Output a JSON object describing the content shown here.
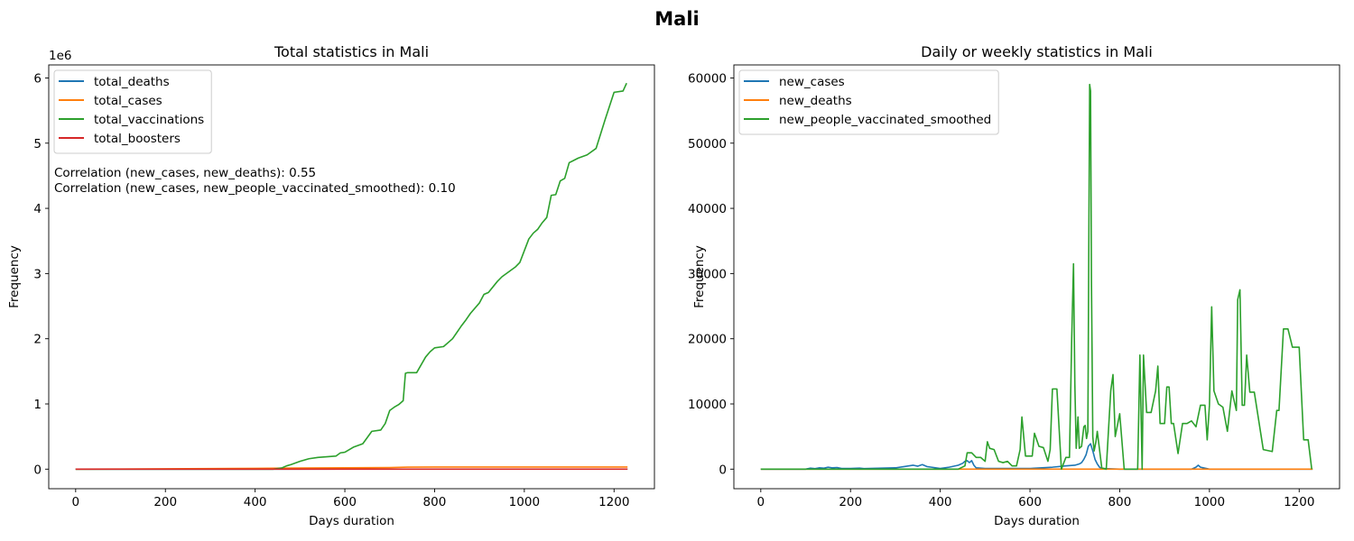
{
  "figure": {
    "suptitle": "Mali"
  },
  "chart_data": [
    {
      "type": "line",
      "title": "Total statistics in Mali",
      "xlabel": "Days duration",
      "ylabel": "Frequency",
      "y_offset_label": "1e6",
      "xlim": [
        -60,
        1290
      ],
      "ylim": [
        -300000,
        6200000
      ],
      "xticks": [
        0,
        200,
        400,
        600,
        800,
        1000,
        1200
      ],
      "yticks": [
        0,
        1000000,
        2000000,
        3000000,
        4000000,
        5000000,
        6000000
      ],
      "ytick_labels": [
        "0",
        "1",
        "2",
        "3",
        "4",
        "5",
        "6"
      ],
      "legend_position": "upper-left",
      "annotations": [
        "Correlation (new_cases, new_deaths): 0.55",
        "Correlation (new_cases, new_people_vaccinated_smoothed): 0.10"
      ],
      "series": [
        {
          "name": "total_deaths",
          "color": "#1f77b4",
          "x": [
            0,
            200,
            400,
            600,
            800,
            1000,
            1230
          ],
          "y": [
            0,
            200,
            400,
            600,
            740,
            743,
            743
          ]
        },
        {
          "name": "total_cases",
          "color": "#ff7f0e",
          "x": [
            0,
            100,
            200,
            300,
            400,
            460,
            500,
            600,
            700,
            740,
            800,
            1000,
            1230
          ],
          "y": [
            0,
            2000,
            5000,
            8000,
            12000,
            15000,
            17000,
            20000,
            24000,
            31000,
            33000,
            33000,
            33200
          ]
        },
        {
          "name": "total_vaccinations",
          "color": "#2ca02c",
          "x": [
            0,
            440,
            460,
            470,
            480,
            500,
            520,
            540,
            560,
            580,
            590,
            600,
            620,
            640,
            660,
            680,
            690,
            700,
            710,
            720,
            730,
            735,
            740,
            760,
            780,
            790,
            800,
            820,
            840,
            860,
            870,
            880,
            900,
            910,
            920,
            940,
            950,
            960,
            980,
            990,
            1000,
            1010,
            1020,
            1030,
            1040,
            1050,
            1060,
            1070,
            1080,
            1090,
            1100,
            1120,
            1140,
            1160,
            1180,
            1200,
            1220,
            1228
          ],
          "y": [
            0,
            0,
            20000,
            50000,
            70000,
            120000,
            160000,
            180000,
            190000,
            200000,
            250000,
            260000,
            340000,
            390000,
            580000,
            600000,
            700000,
            900000,
            950000,
            990000,
            1050000,
            1470000,
            1480000,
            1480000,
            1720000,
            1800000,
            1860000,
            1880000,
            2000000,
            2200000,
            2290000,
            2390000,
            2550000,
            2680000,
            2710000,
            2880000,
            2950000,
            3000000,
            3100000,
            3170000,
            3350000,
            3530000,
            3620000,
            3680000,
            3780000,
            3860000,
            4200000,
            4210000,
            4420000,
            4460000,
            4700000,
            4770000,
            4820000,
            4920000,
            5360000,
            5780000,
            5800000,
            5920000
          ]
        },
        {
          "name": "total_boosters",
          "color": "#d62728",
          "x": [
            0,
            1230
          ],
          "y": [
            0,
            0
          ]
        }
      ]
    },
    {
      "type": "line",
      "title": "Daily or weekly statistics in Mali",
      "xlabel": "Days duration",
      "ylabel": "Frequency",
      "xlim": [
        -60,
        1290
      ],
      "ylim": [
        -3000,
        62000
      ],
      "xticks": [
        0,
        200,
        400,
        600,
        800,
        1000,
        1200
      ],
      "yticks": [
        0,
        10000,
        20000,
        30000,
        40000,
        50000,
        60000
      ],
      "ytick_labels": [
        "0",
        "10000",
        "20000",
        "30000",
        "40000",
        "50000",
        "60000"
      ],
      "legend_position": "upper-left",
      "series": [
        {
          "name": "new_cases",
          "color": "#1f77b4",
          "x": [
            0,
            100,
            110,
            120,
            130,
            140,
            150,
            160,
            170,
            180,
            200,
            220,
            230,
            300,
            320,
            330,
            340,
            350,
            360,
            370,
            380,
            400,
            420,
            440,
            450,
            455,
            460,
            465,
            470,
            475,
            480,
            500,
            600,
            650,
            680,
            700,
            710,
            715,
            720,
            725,
            730,
            735,
            740,
            745,
            750,
            755,
            760,
            800,
            960,
            970,
            975,
            980,
            1000,
            1230
          ],
          "y": [
            0,
            0,
            150,
            80,
            200,
            150,
            300,
            200,
            250,
            100,
            100,
            150,
            80,
            200,
            400,
            500,
            600,
            450,
            700,
            400,
            300,
            100,
            300,
            600,
            900,
            1200,
            1300,
            1000,
            1300,
            600,
            200,
            100,
            100,
            300,
            500,
            600,
            800,
            1000,
            1500,
            2200,
            3500,
            3900,
            2800,
            1500,
            800,
            300,
            100,
            0,
            0,
            300,
            600,
            300,
            0,
            0
          ]
        },
        {
          "name": "new_deaths",
          "color": "#ff7f0e",
          "x": [
            0,
            200,
            400,
            600,
            800,
            1000,
            1230
          ],
          "y": [
            0,
            2,
            5,
            10,
            5,
            2,
            0
          ]
        },
        {
          "name": "new_people_vaccinated_smoothed",
          "color": "#2ca02c",
          "x": [
            0,
            440,
            455,
            460,
            470,
            480,
            490,
            500,
            505,
            510,
            520,
            530,
            540,
            550,
            560,
            570,
            578,
            582,
            590,
            600,
            605,
            610,
            620,
            630,
            640,
            645,
            650,
            660,
            670,
            680,
            688,
            693,
            697,
            700,
            703,
            707,
            710,
            715,
            720,
            723,
            726,
            729,
            733,
            735,
            737,
            740,
            743,
            747,
            750,
            760,
            770,
            780,
            785,
            790,
            800,
            810,
            815,
            820,
            830,
            840,
            845,
            850,
            853,
            860,
            870,
            880,
            885,
            890,
            895,
            900,
            905,
            910,
            915,
            920,
            930,
            940,
            950,
            960,
            970,
            980,
            990,
            995,
            1000,
            1005,
            1010,
            1020,
            1030,
            1040,
            1050,
            1060,
            1063,
            1068,
            1073,
            1078,
            1083,
            1090,
            1100,
            1120,
            1140,
            1150,
            1155,
            1165,
            1175,
            1185,
            1200,
            1210,
            1220,
            1228
          ],
          "y": [
            0,
            0,
            500,
            2500,
            2500,
            1800,
            1800,
            1200,
            4200,
            3200,
            3000,
            1200,
            1000,
            1200,
            500,
            500,
            3000,
            8000,
            2000,
            2000,
            2000,
            5500,
            3500,
            3300,
            1200,
            3000,
            12300,
            12300,
            0,
            1800,
            1800,
            20000,
            31500,
            13000,
            3200,
            8000,
            3200,
            3500,
            6500,
            6700,
            4700,
            5800,
            59000,
            58000,
            29000,
            5000,
            2800,
            4200,
            5800,
            200,
            0,
            12000,
            14500,
            5000,
            8500,
            0,
            0,
            0,
            0,
            0,
            17500,
            0,
            17500,
            8700,
            8700,
            12000,
            15800,
            7000,
            7000,
            7000,
            12600,
            12600,
            7000,
            7000,
            2400,
            7000,
            7000,
            7400,
            6500,
            9800,
            9800,
            4500,
            9800,
            24900,
            12000,
            10000,
            9500,
            5800,
            12000,
            9000,
            26000,
            27500,
            9800,
            9800,
            17500,
            11800,
            11800,
            3000,
            2700,
            9000,
            9000,
            21500,
            21500,
            18700,
            18700,
            4500,
            4500,
            0
          ]
        }
      ]
    }
  ]
}
